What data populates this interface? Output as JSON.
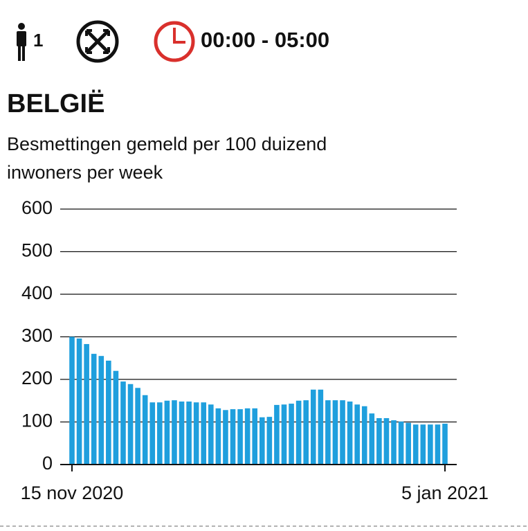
{
  "header": {
    "persons": "1",
    "time": "00:00 - 05:00"
  },
  "chart_data": {
    "type": "bar",
    "title": "BELGIË",
    "subtitle": [
      "Besmettingen gemeld per 100 duizend",
      "inwoners per week"
    ],
    "categories": [
      "15 nov 2020",
      null,
      null,
      null,
      null,
      null,
      null,
      null,
      null,
      null,
      null,
      null,
      null,
      null,
      null,
      null,
      null,
      null,
      null,
      null,
      null,
      null,
      null,
      null,
      null,
      null,
      null,
      null,
      null,
      null,
      null,
      null,
      null,
      null,
      null,
      null,
      null,
      null,
      null,
      null,
      null,
      null,
      null,
      null,
      null,
      null,
      null,
      null,
      null,
      null,
      null,
      "5 jan 2021"
    ],
    "values": [
      300,
      296,
      283,
      260,
      255,
      244,
      220,
      195,
      189,
      180,
      163,
      146,
      146,
      150,
      151,
      148,
      148,
      146,
      146,
      141,
      132,
      128,
      130,
      130,
      132,
      132,
      111,
      112,
      140,
      141,
      143,
      150,
      151,
      176,
      176,
      151,
      151,
      151,
      148,
      141,
      137,
      120,
      109,
      109,
      104,
      101,
      98,
      94,
      94,
      94,
      94,
      96
    ],
    "color": "#1f9fdd",
    "ylim": [
      0,
      600
    ],
    "yticks": [
      0,
      100,
      200,
      300,
      400,
      500,
      600
    ],
    "grid": true
  }
}
